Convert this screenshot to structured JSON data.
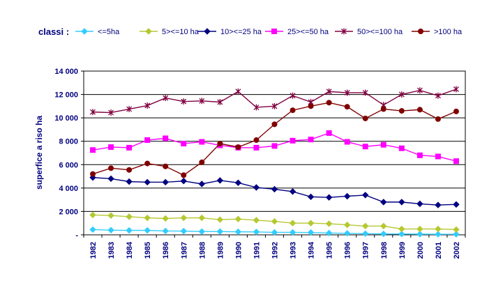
{
  "chart_data": {
    "type": "line",
    "legend_title": "classi :",
    "legend_position": "top",
    "ylabel": "superfice a riso ha",
    "xlabel": "",
    "ylim": [
      0,
      14000
    ],
    "yticks": [
      0,
      2000,
      4000,
      6000,
      8000,
      10000,
      12000,
      14000
    ],
    "ytick_labels": [
      "-",
      "2 000",
      "4 000",
      "6 000",
      "8 000",
      "10 000",
      "12 000",
      "14 000"
    ],
    "grid": true,
    "x": [
      "1982",
      "1983",
      "1984",
      "1985",
      "1986",
      "1987",
      "1988",
      "1989",
      "1990",
      "1991",
      "1992",
      "1993",
      "1994",
      "1995",
      "1996",
      "1997",
      "1998",
      "1999",
      "2000",
      "2001",
      "2002"
    ],
    "series": [
      {
        "name": "<=5ha",
        "color": "#33ccff",
        "marker": "diamond",
        "values": [
          450,
          400,
          380,
          380,
          330,
          320,
          280,
          280,
          260,
          250,
          210,
          210,
          200,
          150,
          130,
          100,
          80,
          70,
          60,
          50,
          50
        ]
      },
      {
        "name": "5><=10 ha",
        "color": "#b5c832",
        "marker": "diamond",
        "values": [
          1700,
          1650,
          1550,
          1450,
          1400,
          1450,
          1450,
          1300,
          1350,
          1250,
          1150,
          1000,
          1000,
          950,
          850,
          750,
          750,
          500,
          500,
          500,
          450
        ]
      },
      {
        "name": "10><=25 ha",
        "color": "#000080",
        "marker": "diamond",
        "values": [
          4900,
          4800,
          4550,
          4500,
          4500,
          4600,
          4350,
          4650,
          4450,
          4050,
          3900,
          3700,
          3250,
          3200,
          3300,
          3400,
          2800,
          2800,
          2650,
          2550,
          2600
        ]
      },
      {
        "name": "25><=50 ha",
        "color": "#ff00ff",
        "marker": "square",
        "values": [
          7250,
          7500,
          7450,
          8100,
          8250,
          7800,
          7950,
          7650,
          7450,
          7450,
          7600,
          8050,
          8150,
          8700,
          7950,
          7550,
          7700,
          7400,
          6800,
          6700,
          6300
        ]
      },
      {
        "name": "50><=100 ha",
        "color": "#800040",
        "marker": "star",
        "values": [
          10500,
          10450,
          10750,
          11050,
          11700,
          11400,
          11450,
          11350,
          12250,
          10900,
          11000,
          11900,
          11350,
          12250,
          12150,
          12150,
          11100,
          12000,
          12350,
          11900,
          12450
        ]
      },
      {
        "name": ">100 ha",
        "color": "#800000",
        "marker": "circle",
        "values": [
          5200,
          5700,
          5550,
          6100,
          5850,
          5100,
          6200,
          7800,
          7500,
          8100,
          9450,
          10650,
          11000,
          11300,
          10950,
          9950,
          10750,
          10600,
          10700,
          9900,
          10550
        ]
      }
    ]
  }
}
